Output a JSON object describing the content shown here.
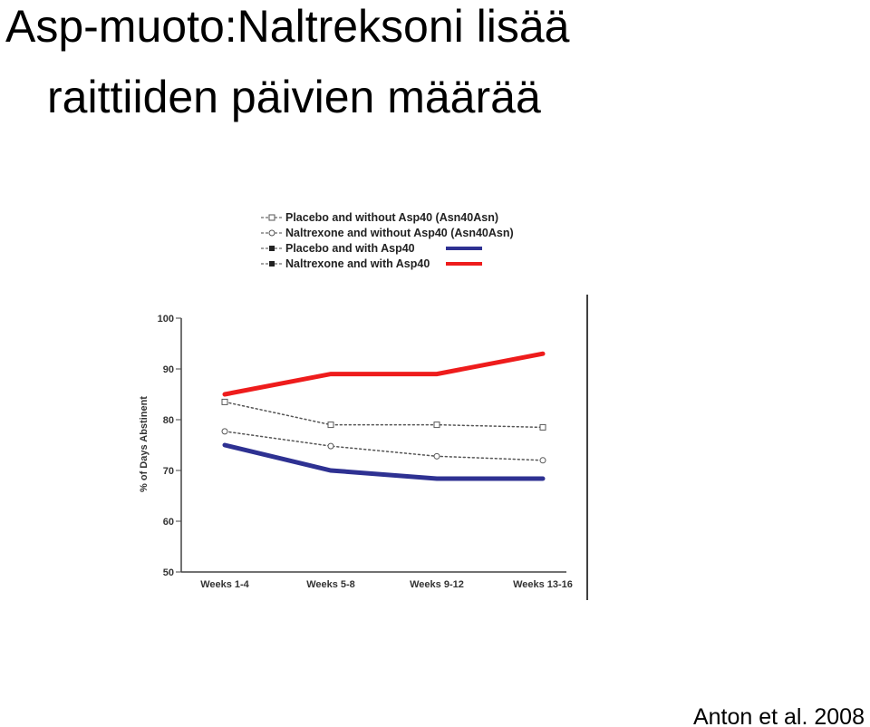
{
  "slide": {
    "title_lines": [
      "Asp-muoto:Naltreksoni lisää",
      "raittiiden päivien määrää"
    ],
    "citation": "Anton et al. 2008"
  },
  "chart_data": {
    "type": "line",
    "y_label": "% of Days Abstinent",
    "categories": [
      "Weeks 1-4",
      "Weeks 5-8",
      "Weeks 9-12",
      "Weeks 13-16"
    ],
    "ylim": [
      50,
      100
    ],
    "yticks": [
      50,
      60,
      70,
      80,
      90,
      100
    ],
    "series": [
      {
        "name": "Placebo and without Asp40 (Asn40Asn)",
        "color": "#555555",
        "style": "dotted",
        "marker": "square",
        "values": [
          83.5,
          79,
          79,
          78.5
        ]
      },
      {
        "name": "Naltrexone and without Asp40 (Asn40Asn)",
        "color": "#555555",
        "style": "dotted",
        "marker": "circle",
        "values": [
          77.7,
          74.8,
          72.8,
          72
        ]
      },
      {
        "name": "Placebo and with Asp40",
        "color": "#2e3192",
        "style": "solid",
        "marker": "none",
        "values": [
          75,
          70,
          68.4,
          68.4
        ]
      },
      {
        "name": "Naltrexone and with Asp40",
        "color": "#ee1c1c",
        "style": "solid",
        "marker": "none",
        "values": [
          85,
          89,
          89,
          93
        ]
      }
    ]
  }
}
